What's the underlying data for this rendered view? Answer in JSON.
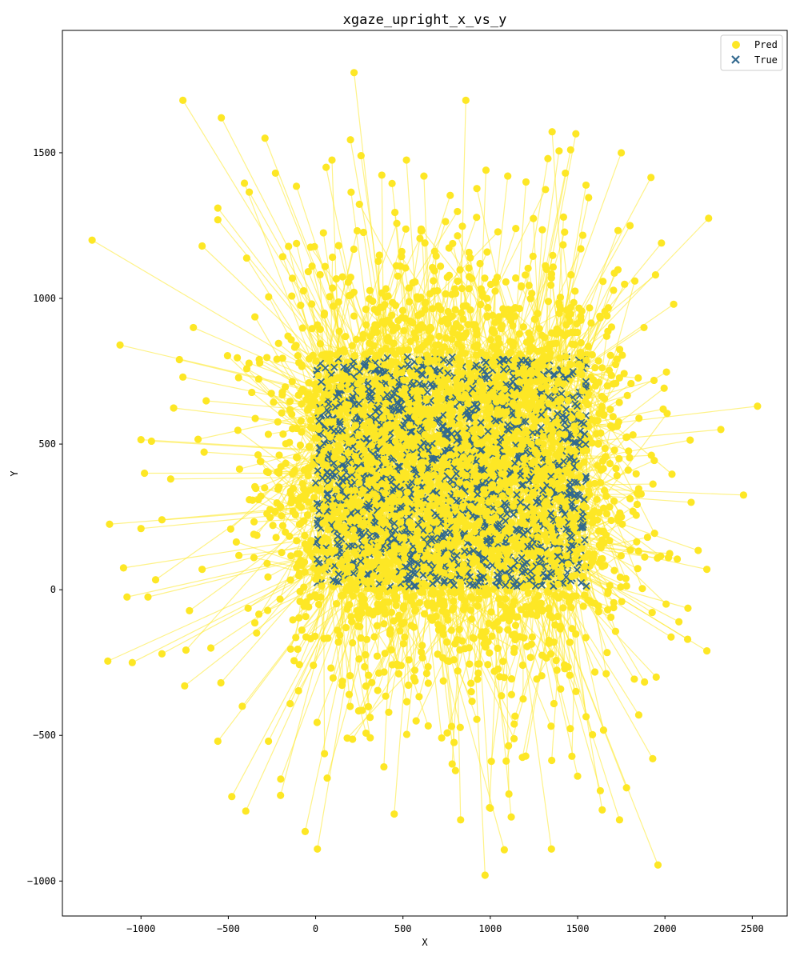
{
  "chart_data": {
    "type": "scatter",
    "title": "xgaze_upright_x_vs_y",
    "xlabel": "X",
    "ylabel": "Y",
    "xlim": [
      -1450,
      2700
    ],
    "ylim": [
      -1120,
      1920
    ],
    "x_ticks": [
      -1000,
      -500,
      0,
      500,
      1000,
      1500,
      2000,
      2500
    ],
    "y_ticks": [
      -1000,
      -500,
      0,
      500,
      1000,
      1500
    ],
    "x_tick_labels": [
      "−1000",
      "−500",
      "0",
      "500",
      "1000",
      "1500",
      "2000",
      "2500"
    ],
    "y_tick_labels": [
      "−1000",
      "−500",
      "0",
      "500",
      "1000",
      "1500"
    ],
    "grid": false,
    "legend": {
      "placement": "top-right",
      "entries": [
        {
          "label": "Pred",
          "marker": "circle",
          "color": "#fde725"
        },
        {
          "label": "True",
          "marker": "x",
          "color": "#31688e"
        }
      ]
    },
    "colors": {
      "pred": "#fde725",
      "true": "#31688e",
      "line": "#fde725"
    },
    "true_region": {
      "x_range": [
        0,
        1600
      ],
      "y_range": [
        0,
        800
      ]
    },
    "series": [
      {
        "name": "Pred",
        "marker": "circle",
        "points": [
          [
            -1280,
            1200
          ],
          [
            -1120,
            840
          ],
          [
            -1190,
            -245
          ],
          [
            -1050,
            -250
          ],
          [
            -1000,
            515
          ],
          [
            -980,
            400
          ],
          [
            -940,
            510
          ],
          [
            -960,
            -25
          ],
          [
            -1100,
            75
          ],
          [
            -1180,
            225
          ],
          [
            -1080,
            -25
          ],
          [
            -1000,
            210
          ],
          [
            -760,
            1680
          ],
          [
            -540,
            1620
          ],
          [
            -290,
            1550
          ],
          [
            -780,
            790
          ],
          [
            -760,
            730
          ],
          [
            -650,
            1180
          ],
          [
            -560,
            1310
          ],
          [
            -880,
            -220
          ],
          [
            -750,
            -330
          ],
          [
            -480,
            -710
          ],
          [
            -400,
            -760
          ],
          [
            -60,
            -830
          ],
          [
            10,
            -890
          ],
          [
            -560,
            -520
          ],
          [
            -270,
            -520
          ],
          [
            970,
            -980
          ],
          [
            1350,
            -890
          ],
          [
            1960,
            -945
          ],
          [
            220,
            1775
          ],
          [
            860,
            1680
          ],
          [
            1490,
            1565
          ],
          [
            1460,
            1510
          ],
          [
            1750,
            1500
          ],
          [
            1920,
            1415
          ],
          [
            2250,
            1275
          ],
          [
            2530,
            630
          ],
          [
            2320,
            550
          ],
          [
            2450,
            325
          ],
          [
            2240,
            70
          ],
          [
            2240,
            -210
          ],
          [
            1980,
            1190
          ],
          [
            2050,
            980
          ],
          [
            2150,
            300
          ],
          [
            2080,
            -110
          ],
          [
            2130,
            -170
          ],
          [
            1740,
            -790
          ],
          [
            1930,
            -580
          ],
          [
            1780,
            -680
          ],
          [
            1630,
            -690
          ],
          [
            1800,
            1250
          ],
          [
            1430,
            1430
          ],
          [
            1330,
            1480
          ],
          [
            1100,
            1420
          ],
          [
            620,
            1420
          ],
          [
            520,
            1475
          ],
          [
            260,
            1490
          ],
          [
            60,
            1450
          ],
          [
            -110,
            1385
          ],
          [
            -230,
            1430
          ],
          [
            -380,
            1365
          ],
          [
            -560,
            1270
          ],
          [
            -700,
            900
          ],
          [
            -830,
            380
          ],
          [
            -880,
            240
          ],
          [
            -650,
            70
          ],
          [
            -600,
            -200
          ],
          [
            -420,
            -400
          ],
          [
            -200,
            -650
          ],
          [
            450,
            -770
          ],
          [
            830,
            -790
          ],
          [
            1000,
            -750
          ],
          [
            1120,
            -780
          ],
          [
            1500,
            -640
          ],
          [
            1850,
            -430
          ],
          [
            1950,
            -300
          ],
          [
            2020,
            110
          ],
          [
            1990,
            620
          ],
          [
            1880,
            900
          ]
        ]
      },
      {
        "name": "True",
        "marker": "x",
        "x_range": [
          0,
          1550
        ],
        "y_range": [
          10,
          800
        ]
      }
    ]
  }
}
